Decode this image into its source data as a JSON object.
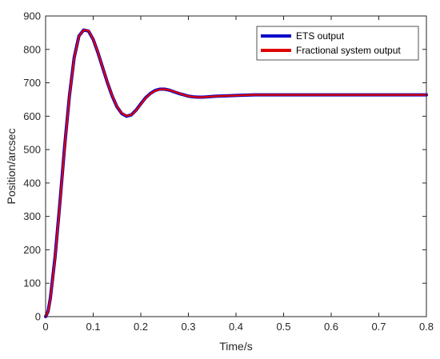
{
  "chart_data": {
    "type": "line",
    "title": "",
    "xlabel": "Time/s",
    "ylabel": "Position/arcsec",
    "xlim": [
      0,
      0.8
    ],
    "ylim": [
      0,
      900
    ],
    "xticks": [
      "0",
      "0.1",
      "0.2",
      "0.3",
      "0.4",
      "0.5",
      "0.6",
      "0.7",
      "0.8"
    ],
    "yticks": [
      "0",
      "100",
      "200",
      "300",
      "400",
      "500",
      "600",
      "700",
      "800",
      "900"
    ],
    "grid": false,
    "legend_position": "top-right",
    "series": [
      {
        "name": "ETS output",
        "color": "#0a00c8",
        "x": [
          0,
          0.005,
          0.01,
          0.02,
          0.03,
          0.04,
          0.05,
          0.06,
          0.07,
          0.08,
          0.09,
          0.1,
          0.11,
          0.12,
          0.13,
          0.14,
          0.15,
          0.16,
          0.17,
          0.18,
          0.19,
          0.2,
          0.21,
          0.22,
          0.23,
          0.24,
          0.25,
          0.26,
          0.27,
          0.28,
          0.29,
          0.3,
          0.31,
          0.32,
          0.33,
          0.34,
          0.35,
          0.36,
          0.38,
          0.4,
          0.42,
          0.44,
          0.46,
          0.5,
          0.55,
          0.6,
          0.65,
          0.7,
          0.75,
          0.8
        ],
        "y": [
          0,
          15,
          55,
          180,
          340,
          510,
          660,
          775,
          840,
          858,
          855,
          830,
          790,
          745,
          700,
          660,
          628,
          608,
          600,
          604,
          618,
          637,
          655,
          668,
          677,
          681,
          681,
          678,
          673,
          668,
          664,
          660,
          658,
          657,
          657,
          658,
          659,
          660,
          661,
          662,
          663,
          664,
          664,
          664,
          664,
          664,
          664,
          664,
          664,
          664
        ]
      },
      {
        "name": "Fractional system output",
        "color": "#e00000",
        "x": [
          0,
          0.005,
          0.01,
          0.02,
          0.03,
          0.04,
          0.05,
          0.06,
          0.07,
          0.08,
          0.09,
          0.1,
          0.11,
          0.12,
          0.13,
          0.14,
          0.15,
          0.16,
          0.17,
          0.18,
          0.19,
          0.2,
          0.21,
          0.22,
          0.23,
          0.24,
          0.25,
          0.26,
          0.27,
          0.28,
          0.29,
          0.3,
          0.31,
          0.32,
          0.33,
          0.34,
          0.35,
          0.36,
          0.38,
          0.4,
          0.42,
          0.44,
          0.46,
          0.5,
          0.55,
          0.6,
          0.65,
          0.7,
          0.75,
          0.8
        ],
        "y": [
          0,
          14,
          52,
          176,
          336,
          506,
          657,
          773,
          839,
          858,
          856,
          831,
          791,
          746,
          701,
          661,
          629,
          609,
          601,
          604,
          617,
          636,
          654,
          667,
          676,
          680,
          681,
          678,
          674,
          669,
          664,
          660,
          658,
          657,
          657,
          658,
          659,
          660,
          661,
          662,
          663,
          664,
          664,
          664,
          664,
          664,
          664,
          664,
          664,
          664
        ]
      }
    ]
  }
}
